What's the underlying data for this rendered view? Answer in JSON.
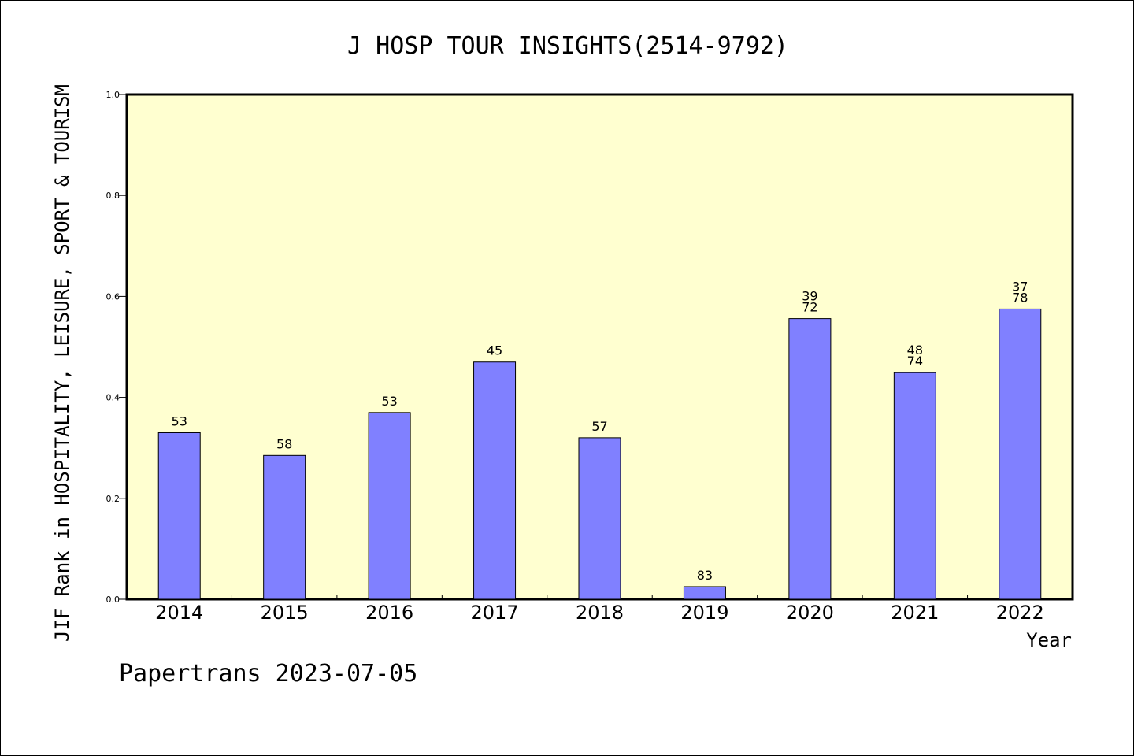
{
  "chart_data": {
    "type": "bar",
    "title": "J HOSP TOUR INSIGHTS(2514-9792)",
    "xlabel": "Year",
    "ylabel": "JIF Rank in HOSPITALITY, LEISURE, SPORT & TOURISM",
    "footer": "Papertrans 2023-07-05",
    "categories": [
      "2014",
      "2015",
      "2016",
      "2017",
      "2018",
      "2019",
      "2020",
      "2021",
      "2022"
    ],
    "values": [
      0.33,
      0.285,
      0.37,
      0.47,
      0.32,
      0.025,
      0.556,
      0.449,
      0.575
    ],
    "bar_labels": [
      [
        "53"
      ],
      [
        "58"
      ],
      [
        "53"
      ],
      [
        "45"
      ],
      [
        "57"
      ],
      [
        "83"
      ],
      [
        "39",
        "72"
      ],
      [
        "48",
        "74"
      ],
      [
        "37",
        "78"
      ]
    ],
    "ylim": [
      0,
      1.0
    ],
    "yticks": [
      "0.0",
      "0.2",
      "0.4",
      "0.6",
      "0.8",
      "1.0"
    ],
    "grid": false,
    "colors": {
      "bar": "#8080ff",
      "plot_background": "#ffffd0",
      "axis": "#000000"
    }
  }
}
